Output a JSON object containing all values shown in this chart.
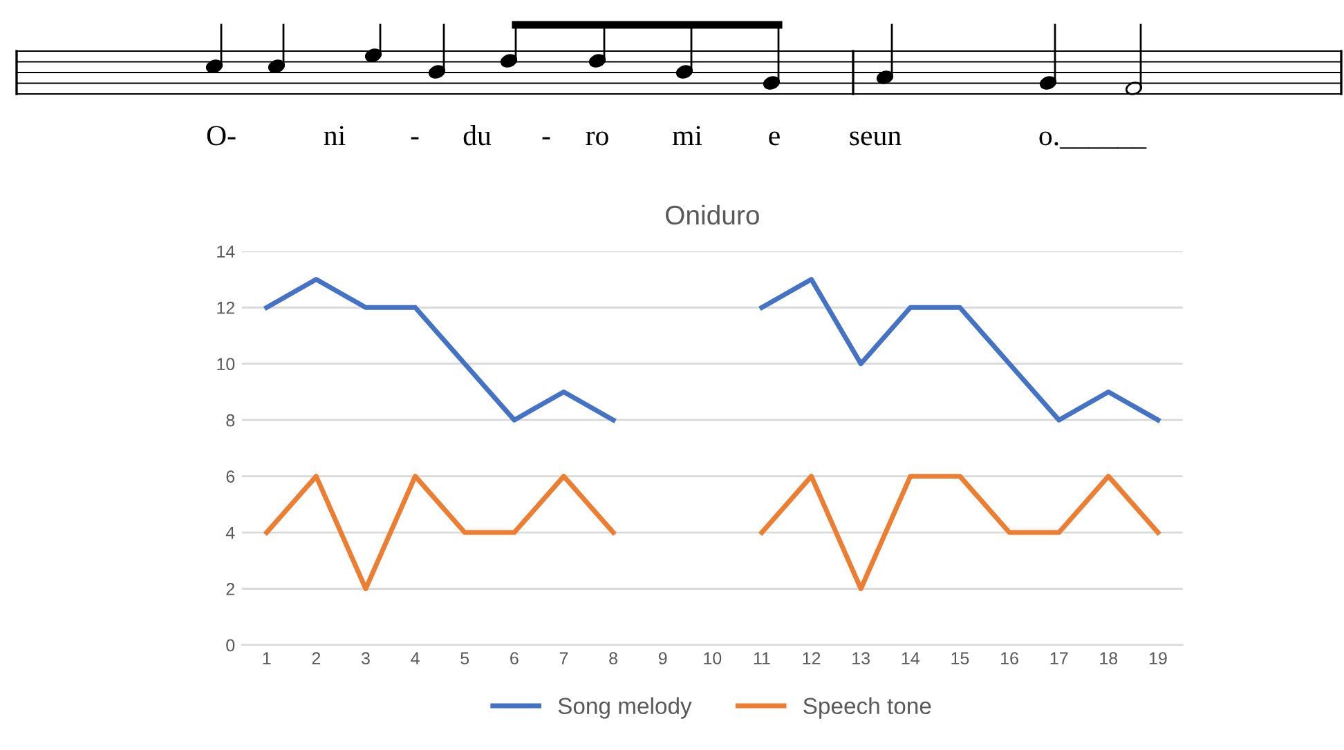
{
  "chart_data": {
    "type": "line",
    "title": "Oniduro",
    "categories": [
      "1",
      "2",
      "3",
      "4",
      "5",
      "6",
      "7",
      "8",
      "9",
      "10",
      "11",
      "12",
      "13",
      "14",
      "15",
      "16",
      "17",
      "18",
      "19"
    ],
    "series": [
      {
        "name": "Song melody",
        "color": "#4472c4",
        "values": [
          12,
          13,
          12,
          12,
          10,
          8,
          9,
          8,
          null,
          null,
          12,
          13,
          10,
          12,
          12,
          10,
          8,
          9,
          8
        ]
      },
      {
        "name": "Speech tone",
        "color": "#ed7d31",
        "values": [
          4,
          6,
          2,
          6,
          4,
          4,
          6,
          4,
          null,
          null,
          4,
          6,
          2,
          6,
          6,
          4,
          4,
          6,
          4
        ]
      }
    ],
    "ylim": [
      0,
      14
    ],
    "yticks": [
      0,
      2,
      4,
      6,
      8,
      10,
      12,
      14
    ],
    "grid": "y",
    "legend": "bottom",
    "marker": "none",
    "line_style": "solid",
    "annotations": [
      "O-",
      "ni",
      "-",
      "du",
      "-",
      "ro",
      "mi",
      "e",
      "seun",
      "o.______"
    ]
  }
}
